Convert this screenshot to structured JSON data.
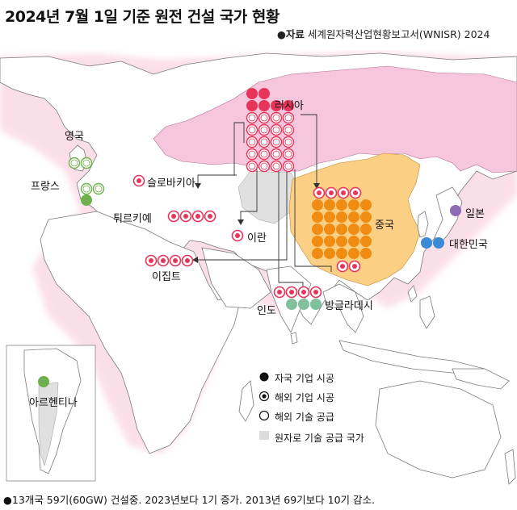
{
  "title": "2024년 7월 1일 기준 원전 건설 국가 현황",
  "source_label": "●자료",
  "source_text": "세계원자력산업현황보고서(WNISR) 2024",
  "countries": {
    "russia": "러시아",
    "uk": "영국",
    "france": "프랑스",
    "slovakia": "슬로바키아",
    "turkey": "튀르키예",
    "iran": "이란",
    "egypt": "이집트",
    "china": "중국",
    "japan": "일본",
    "korea": "대한민국",
    "india": "인도",
    "bangladesh": "방글라데시",
    "argentina": "아르헨티나"
  },
  "legend": {
    "domestic": "자국 기업 시공",
    "foreign_builder": "해외 기업 시공",
    "foreign_tech": "해외 기술 공급",
    "supplier_country": "원자로 기술 공급 국가"
  },
  "footer": "●13개국 59기(60GW) 건설중. 2023년보다 1기 증가. 2013년 69기보다 10기 감소.",
  "reactor_counts": {
    "russia": {
      "domestic": 4,
      "foreign_tech": 20
    },
    "uk": {
      "foreign_tech": 2
    },
    "france": {
      "foreign_tech": 2,
      "domestic": 1
    },
    "slovakia": {
      "foreign_builder": 1
    },
    "turkey": {
      "foreign_builder": 4
    },
    "iran": {
      "foreign_builder": 1
    },
    "egypt": {
      "foreign_builder": 4
    },
    "china": {
      "foreign_builder": 4,
      "domestic": 25
    },
    "japan": {
      "domestic": 1
    },
    "korea": {
      "domestic": 2
    },
    "india": {
      "foreign_builder": 4,
      "domestic": 3
    },
    "bangladesh": {
      "foreign_builder": 2
    },
    "argentina": {
      "domestic": 1
    }
  },
  "colors": {
    "russia_fill": "#f6c6dc",
    "china_fill": "#fbd084",
    "supplier_gray": "#dcdcdc",
    "russia_dot": "#e8335a",
    "china_dot": "#f08c12",
    "france_dot": "#6fb04e",
    "japan_dot": "#8e6ab4",
    "korea_dot": "#3b8ad6",
    "india_dot": "#7fc19c"
  }
}
